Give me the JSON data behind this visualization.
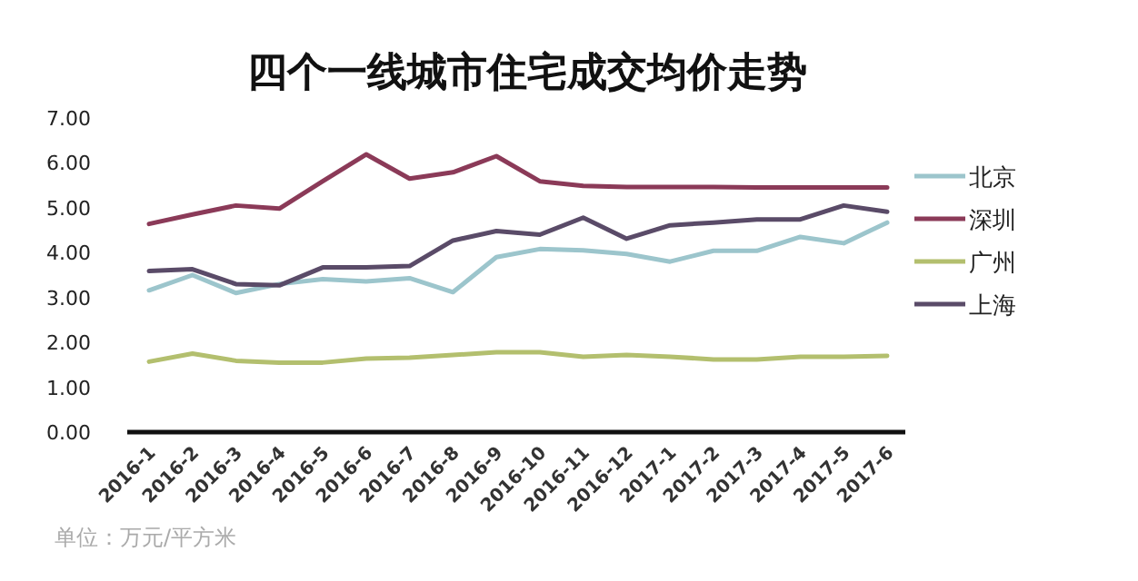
{
  "chart_data": {
    "type": "line",
    "title": "四个一线城市住宅成交均价走势",
    "categories": [
      "2016-1",
      "2016-2",
      "2016-3",
      "2016-4",
      "2016-5",
      "2016-6",
      "2016-7",
      "2016-8",
      "2016-9",
      "2016-10",
      "2016-11",
      "2016-12",
      "2017-1",
      "2017-2",
      "2017-3",
      "2017-4",
      "2017-5",
      "2017-6"
    ],
    "series": [
      {
        "name": "北京",
        "color": "#9cc5cc",
        "values": [
          3.16,
          3.5,
          3.1,
          3.3,
          3.41,
          3.36,
          3.43,
          3.12,
          3.9,
          4.08,
          4.05,
          3.97,
          3.8,
          4.04,
          4.04,
          4.35,
          4.21,
          4.67
        ]
      },
      {
        "name": "深圳",
        "color": "#8b3a58",
        "values": [
          4.64,
          4.85,
          5.05,
          4.98,
          5.59,
          6.19,
          5.65,
          5.79,
          6.15,
          5.59,
          5.49,
          5.46,
          5.46,
          5.46,
          5.45,
          5.45,
          5.45,
          5.45
        ]
      },
      {
        "name": "广州",
        "color": "#b3bf6e",
        "values": [
          1.57,
          1.75,
          1.59,
          1.55,
          1.55,
          1.64,
          1.66,
          1.72,
          1.78,
          1.78,
          1.68,
          1.72,
          1.68,
          1.62,
          1.62,
          1.68,
          1.68,
          1.7
        ]
      },
      {
        "name": "上海",
        "color": "#5a4b68",
        "values": [
          3.59,
          3.63,
          3.3,
          3.27,
          3.67,
          3.67,
          3.7,
          4.27,
          4.48,
          4.4,
          4.78,
          4.31,
          4.61,
          4.67,
          4.74,
          4.74,
          5.05,
          4.91
        ]
      }
    ],
    "ylim": [
      0,
      7
    ],
    "yticks": [
      {
        "value": 0,
        "label": "0.00"
      },
      {
        "value": 1,
        "label": "1.00"
      },
      {
        "value": 2,
        "label": "2.00"
      },
      {
        "value": 3,
        "label": "3.00"
      },
      {
        "value": 4,
        "label": "4.00"
      },
      {
        "value": 5,
        "label": "5.00"
      },
      {
        "value": 6,
        "label": "6.00"
      },
      {
        "value": 7,
        "label": "7.00"
      }
    ],
    "legend": "right",
    "annotations": [
      "单位：万元/平方米"
    ]
  }
}
